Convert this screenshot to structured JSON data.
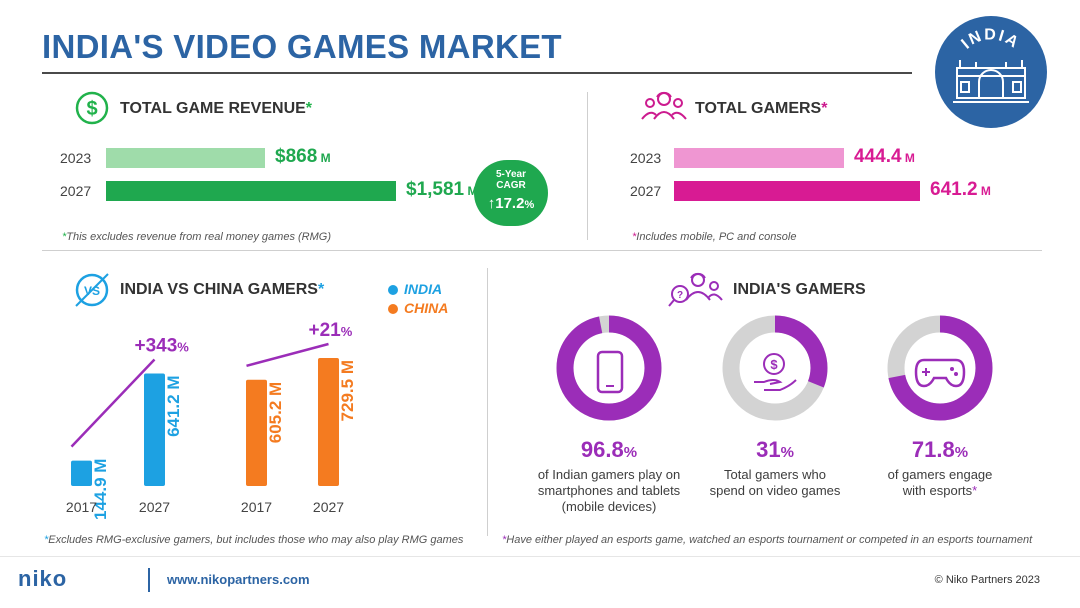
{
  "title": "INDIA'S VIDEO GAMES MARKET",
  "badge": {
    "label": "INDIA"
  },
  "revenue": {
    "title": "TOTAL GAME REVENUE",
    "star": "*",
    "rows": [
      {
        "year": "2023",
        "value_text": "$868",
        "unit": "M",
        "value": 868,
        "color": "#9fdcaa"
      },
      {
        "year": "2027",
        "value_text": "$1,581",
        "unit": "M",
        "value": 1581,
        "color": "#1fa84f"
      }
    ],
    "cagr": {
      "line1": "5-Year",
      "line2": "CAGR",
      "value": "17.2",
      "unit": "%"
    },
    "note_star": "*",
    "note": "This excludes revenue from real money games (RMG)"
  },
  "gamers": {
    "title": "TOTAL GAMERS",
    "star": "*",
    "rows": [
      {
        "year": "2023",
        "value_text": "444.4",
        "unit": "M",
        "value": 444.4,
        "color": "#ef96d2"
      },
      {
        "year": "2027",
        "value_text": "641.2",
        "unit": "M",
        "value": 641.2,
        "color": "#d81b93"
      }
    ],
    "note_star": "*",
    "note": "Includes mobile, PC and console"
  },
  "vs": {
    "title": "INDIA VS CHINA GAMERS",
    "star": "*",
    "icon_label": "VS",
    "legend": [
      {
        "name": "INDIA",
        "color": "#1da1e2"
      },
      {
        "name": "CHINA",
        "color": "#f47b20"
      }
    ],
    "note_star": "*",
    "note": "Excludes RMG-exclusive gamers, but includes those who may also play RMG games"
  },
  "chart_data": {
    "type": "bar",
    "title": "INDIA VS CHINA GAMERS",
    "groups": [
      {
        "name": "INDIA",
        "color": "#1da1e2",
        "categories": [
          "2017",
          "2027"
        ],
        "values": [
          144.9,
          641.2
        ],
        "labels": [
          "144.9",
          "641.2"
        ],
        "unit": "M",
        "growth_text": "+343",
        "growth_unit": "%"
      },
      {
        "name": "CHINA",
        "color": "#f47b20",
        "categories": [
          "2017",
          "2027"
        ],
        "values": [
          605.2,
          729.5
        ],
        "labels": [
          "605.2",
          "729.5"
        ],
        "unit": "M",
        "growth_text": "+21",
        "growth_unit": "%"
      }
    ],
    "trend_color": "#9b2db8"
  },
  "india_gamers": {
    "title": "INDIA'S GAMERS",
    "donuts": [
      {
        "value": 96.8,
        "pct_text": "96.8",
        "unit": "%",
        "caption": [
          "of Indian gamers play on",
          "smartphones and tablets",
          "(mobile devices)"
        ],
        "icon": "smartphone-icon"
      },
      {
        "value": 31,
        "pct_text": "31",
        "unit": "%",
        "caption": [
          "Total gamers who",
          "spend on video games"
        ],
        "icon": "money-hand-icon"
      },
      {
        "value": 71.8,
        "pct_text": "71.8",
        "unit": "%",
        "caption": [
          "of gamers engage",
          "with esports"
        ],
        "caption_star": "*",
        "icon": "gamepad-icon"
      }
    ],
    "fill_color": "#9b2db8",
    "track_color": "#d3d3d3",
    "note_star": "*",
    "note": "Have either played an esports game, watched an esports tournament or competed in an esports tournament"
  },
  "footer": {
    "logo": "niko",
    "url": "www.nikopartners.com",
    "copyright": "© Niko Partners 2023"
  }
}
